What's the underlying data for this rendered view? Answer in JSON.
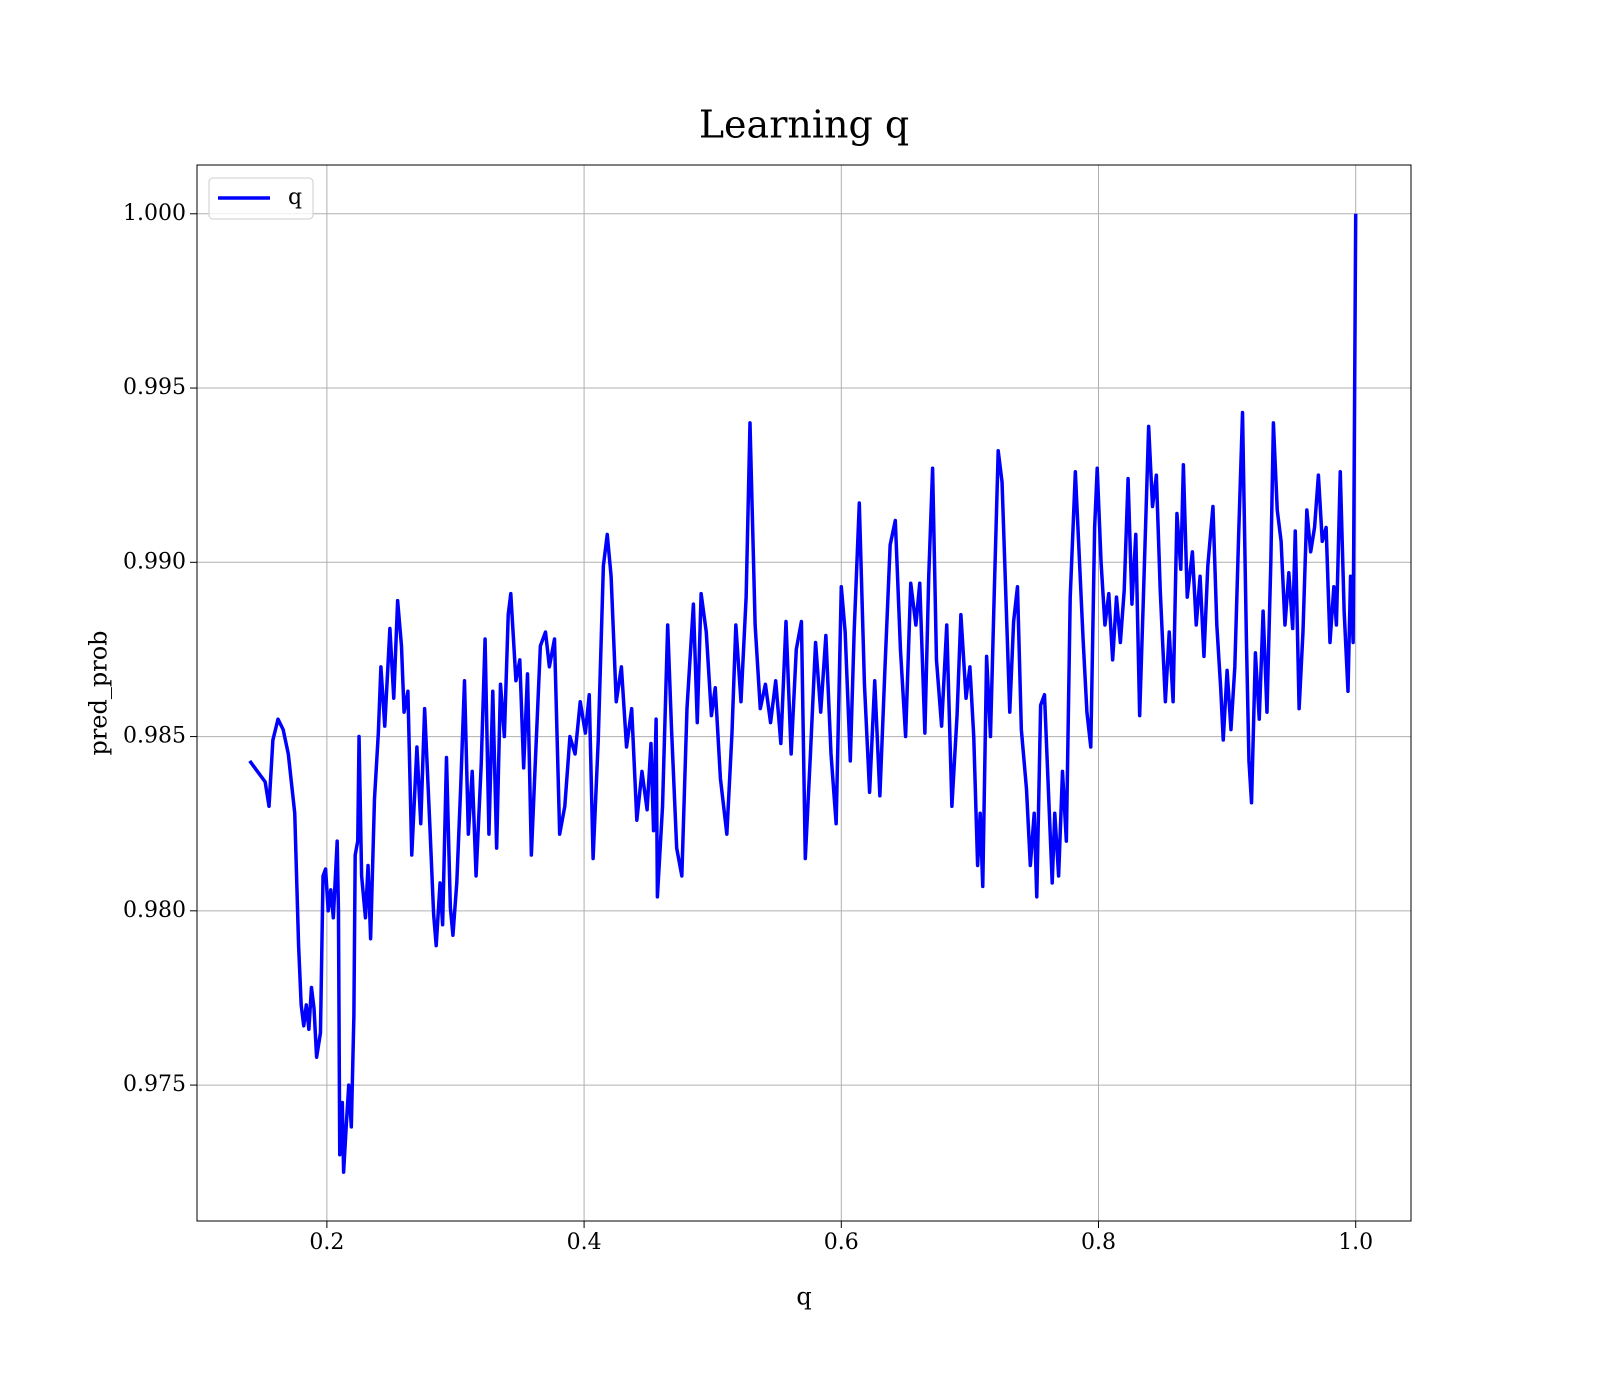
{
  "chart_data": {
    "type": "line",
    "title": "Learning q",
    "x_label": "q",
    "y_label": "pred_prob",
    "xlim": [
      0.099,
      1.043
    ],
    "ylim": [
      0.9711,
      1.0014
    ],
    "xticks": [
      0.2,
      0.4,
      0.6,
      0.8,
      {
        "value": 1,
        "label": "1.0"
      }
    ],
    "yticks": [
      {
        "value": 0.975,
        "label": "0.975"
      },
      {
        "value": 0.98,
        "label": "0.980"
      },
      0.985,
      {
        "value": 0.99,
        "label": "0.990"
      },
      0.995,
      {
        "value": 1,
        "label": "1.000"
      }
    ],
    "grid": true,
    "legend": "upper left",
    "x": [
      0.14,
      0.152,
      0.155,
      0.158,
      0.162,
      0.166,
      0.17,
      0.175,
      0.178,
      0.18,
      0.182,
      0.184,
      0.186,
      0.188,
      0.19,
      0.192,
      0.195,
      0.197,
      0.199,
      0.201,
      0.203,
      0.205,
      0.208,
      0.209,
      0.21,
      0.212,
      0.213,
      0.215,
      0.217,
      0.219,
      0.221,
      0.222,
      0.224,
      0.225,
      0.227,
      0.23,
      0.232,
      0.234,
      0.237,
      0.24,
      0.242,
      0.245,
      0.249,
      0.252,
      0.255,
      0.258,
      0.26,
      0.263,
      0.266,
      0.27,
      0.273,
      0.276,
      0.28,
      0.283,
      0.285,
      0.288,
      0.29,
      0.293,
      0.296,
      0.298,
      0.301,
      0.304,
      0.307,
      0.31,
      0.313,
      0.316,
      0.32,
      0.323,
      0.326,
      0.329,
      0.332,
      0.335,
      0.338,
      0.341,
      0.343,
      0.347,
      0.35,
      0.353,
      0.356,
      0.359,
      0.362,
      0.366,
      0.37,
      0.373,
      0.377,
      0.381,
      0.385,
      0.389,
      0.393,
      0.397,
      0.401,
      0.404,
      0.407,
      0.411,
      0.415,
      0.418,
      0.421,
      0.425,
      0.429,
      0.433,
      0.437,
      0.441,
      0.445,
      0.449,
      0.452,
      0.454,
      0.456,
      0.457,
      0.461,
      0.465,
      0.468,
      0.472,
      0.476,
      0.48,
      0.485,
      0.488,
      0.491,
      0.495,
      0.499,
      0.502,
      0.506,
      0.511,
      0.515,
      0.518,
      0.522,
      0.526,
      0.529,
      0.533,
      0.537,
      0.541,
      0.545,
      0.549,
      0.553,
      0.557,
      0.561,
      0.565,
      0.569,
      0.572,
      0.576,
      0.58,
      0.584,
      0.588,
      0.592,
      0.596,
      0.6,
      0.603,
      0.607,
      0.61,
      0.614,
      0.618,
      0.622,
      0.626,
      0.63,
      0.634,
      0.638,
      0.642,
      0.646,
      0.65,
      0.654,
      0.658,
      0.661,
      0.665,
      0.668,
      0.671,
      0.674,
      0.678,
      0.682,
      0.686,
      0.69,
      0.693,
      0.697,
      0.7,
      0.703,
      0.706,
      0.708,
      0.71,
      0.713,
      0.716,
      0.719,
      0.722,
      0.725,
      0.728,
      0.731,
      0.734,
      0.737,
      0.74,
      0.744,
      0.747,
      0.75,
      0.752,
      0.755,
      0.758,
      0.761,
      0.764,
      0.766,
      0.769,
      0.772,
      0.775,
      0.778,
      0.782,
      0.785,
      0.788,
      0.791,
      0.794,
      0.797,
      0.799,
      0.802,
      0.805,
      0.808,
      0.811,
      0.814,
      0.817,
      0.82,
      0.823,
      0.826,
      0.829,
      0.832,
      0.835,
      0.839,
      0.842,
      0.845,
      0.848,
      0.852,
      0.855,
      0.858,
      0.861,
      0.864,
      0.866,
      0.869,
      0.873,
      0.876,
      0.879,
      0.882,
      0.885,
      0.889,
      0.892,
      0.895,
      0.897,
      0.9,
      0.903,
      0.906,
      0.909,
      0.912,
      0.915,
      0.917,
      0.919,
      0.922,
      0.925,
      0.928,
      0.931,
      0.934,
      0.936,
      0.939,
      0.942,
      0.945,
      0.948,
      0.951,
      0.953,
      0.956,
      0.959,
      0.962,
      0.965,
      0.968,
      0.971,
      0.974,
      0.977,
      0.98,
      0.983,
      0.985,
      0.988,
      0.991,
      0.994,
      0.996,
      0.998,
      1.0
    ],
    "series": [
      {
        "name": "q",
        "color": "#0000ff",
        "values": [
          0.9843,
          0.9837,
          0.983,
          0.9849,
          0.9855,
          0.9852,
          0.9845,
          0.9828,
          0.979,
          0.9773,
          0.9767,
          0.9773,
          0.9766,
          0.9778,
          0.9772,
          0.9758,
          0.9765,
          0.981,
          0.9812,
          0.98,
          0.9806,
          0.9798,
          0.982,
          0.98,
          0.973,
          0.9745,
          0.9725,
          0.9738,
          0.975,
          0.9738,
          0.977,
          0.9816,
          0.982,
          0.985,
          0.981,
          0.9798,
          0.9813,
          0.9792,
          0.9832,
          0.9851,
          0.987,
          0.9853,
          0.9881,
          0.9861,
          0.9889,
          0.9876,
          0.9857,
          0.9863,
          0.9816,
          0.9847,
          0.9825,
          0.9858,
          0.9825,
          0.9799,
          0.979,
          0.9808,
          0.9796,
          0.9844,
          0.9801,
          0.9793,
          0.9808,
          0.9835,
          0.9866,
          0.9822,
          0.984,
          0.981,
          0.9842,
          0.9878,
          0.9822,
          0.9863,
          0.9818,
          0.9865,
          0.985,
          0.9885,
          0.9891,
          0.9866,
          0.9872,
          0.9841,
          0.9868,
          0.9816,
          0.9842,
          0.9876,
          0.988,
          0.987,
          0.9878,
          0.9822,
          0.983,
          0.985,
          0.9845,
          0.986,
          0.9851,
          0.9862,
          0.9815,
          0.9849,
          0.9899,
          0.9908,
          0.9896,
          0.986,
          0.987,
          0.9847,
          0.9858,
          0.9826,
          0.984,
          0.9829,
          0.9848,
          0.9823,
          0.9855,
          0.9804,
          0.983,
          0.9882,
          0.9852,
          0.9818,
          0.981,
          0.9858,
          0.9888,
          0.9854,
          0.9891,
          0.988,
          0.9856,
          0.9864,
          0.9838,
          0.9822,
          0.9851,
          0.9882,
          0.986,
          0.989,
          0.994,
          0.9882,
          0.9858,
          0.9865,
          0.9854,
          0.9866,
          0.9848,
          0.9883,
          0.9845,
          0.9875,
          0.9883,
          0.9815,
          0.9845,
          0.9877,
          0.9857,
          0.9879,
          0.9845,
          0.9825,
          0.9893,
          0.988,
          0.9843,
          0.988,
          0.9917,
          0.9865,
          0.9834,
          0.9866,
          0.9833,
          0.987,
          0.9905,
          0.9912,
          0.9875,
          0.985,
          0.9894,
          0.9882,
          0.9894,
          0.9851,
          0.9896,
          0.9927,
          0.9872,
          0.9853,
          0.9882,
          0.983,
          0.9856,
          0.9885,
          0.9861,
          0.987,
          0.985,
          0.9813,
          0.9828,
          0.9807,
          0.9873,
          0.985,
          0.9892,
          0.9932,
          0.9923,
          0.989,
          0.9857,
          0.9883,
          0.9893,
          0.9852,
          0.9835,
          0.9813,
          0.9828,
          0.9804,
          0.9859,
          0.9862,
          0.9835,
          0.9808,
          0.9828,
          0.981,
          0.984,
          0.982,
          0.989,
          0.9926,
          0.9902,
          0.9878,
          0.9857,
          0.9847,
          0.991,
          0.9927,
          0.99,
          0.9882,
          0.9891,
          0.9872,
          0.989,
          0.9877,
          0.9892,
          0.9924,
          0.9888,
          0.9908,
          0.9856,
          0.9891,
          0.9939,
          0.9916,
          0.9925,
          0.9892,
          0.986,
          0.988,
          0.986,
          0.9914,
          0.9898,
          0.9928,
          0.989,
          0.9903,
          0.9882,
          0.9896,
          0.9873,
          0.9899,
          0.9916,
          0.9882,
          0.9864,
          0.9849,
          0.9869,
          0.9852,
          0.987,
          0.9908,
          0.9943,
          0.9878,
          0.9843,
          0.9831,
          0.9874,
          0.9855,
          0.9886,
          0.9857,
          0.99,
          0.994,
          0.9915,
          0.9906,
          0.9882,
          0.9897,
          0.9881,
          0.9909,
          0.9858,
          0.988,
          0.9915,
          0.9903,
          0.991,
          0.9925,
          0.9906,
          0.991,
          0.9877,
          0.9893,
          0.9882,
          0.9926,
          0.9886,
          0.9863,
          0.9896,
          0.9877,
          1.0
        ]
      }
    ]
  }
}
